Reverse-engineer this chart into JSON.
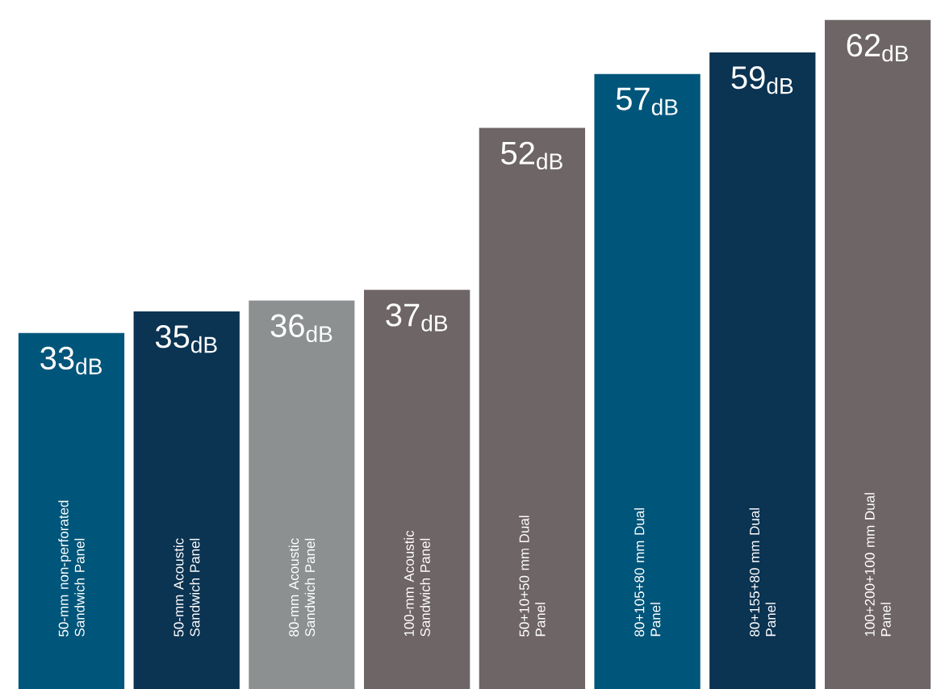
{
  "chart_data": {
    "type": "bar",
    "categories": [
      "50-mm non-perforated Sandwich Panel",
      "50-mm Acoustic Sandwich Panel",
      "80-mm Acoustic Sandwich Panel",
      "100-mm Acoustic Sandwich Panel",
      "50+10+50 mm Dual Panel",
      "80+105+80 mm Dual Panel",
      "80+155+80 mm Dual Panel",
      "100+200+100 mm Dual Panel"
    ],
    "values": [
      33,
      35,
      36,
      37,
      52,
      57,
      59,
      62
    ],
    "value_labels": [
      "33$_{dB}$",
      "35$_{dB}$",
      "36$_{dB}$",
      "37$_{dB}$",
      "52$_{dB}$",
      "57$_{dB}$",
      "59$_{dB}$",
      "62$_{dB}$"
    ],
    "colors": [
      "#00557a",
      "#0b3352",
      "#8c9091",
      "#6e6566",
      "#6e6566",
      "#00557a",
      "#0b3352",
      "#6e6566"
    ]
  }
}
